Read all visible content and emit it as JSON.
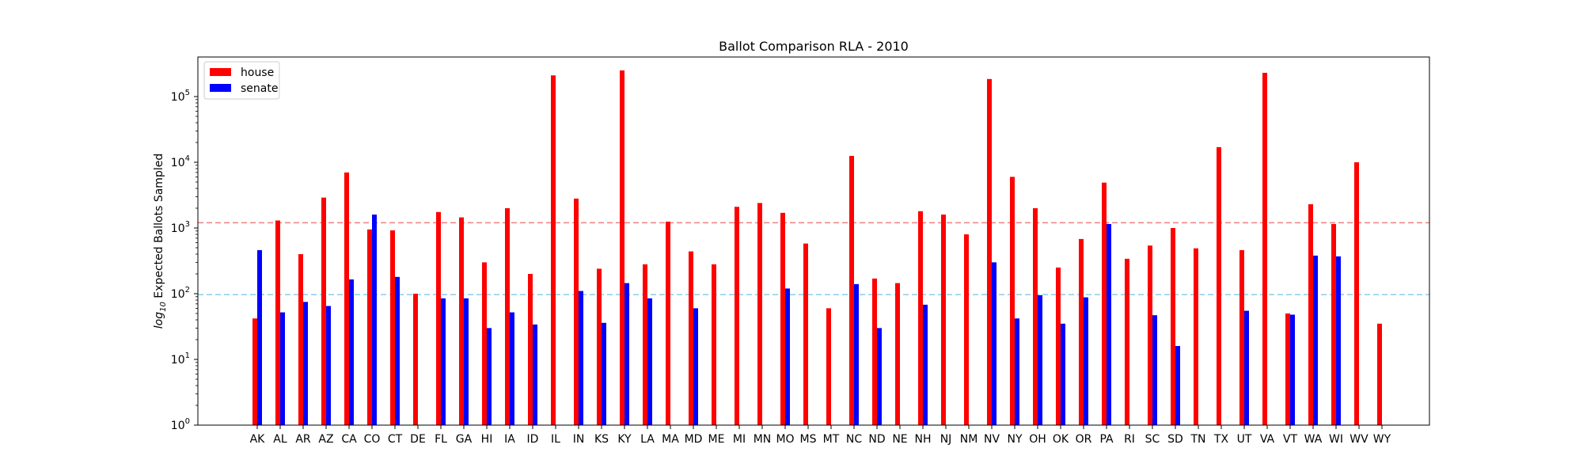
{
  "chart_data": {
    "type": "bar",
    "title": "Ballot Comparison RLA - 2010",
    "xlabel": "",
    "ylabel_prefix": "log",
    "ylabel_sub": "10",
    "ylabel_rest": " Expected Ballots Sampled",
    "yscale": "log",
    "ylim": [
      1,
      400000
    ],
    "yticks": [
      {
        "value": 1,
        "base": "10",
        "exp": "0"
      },
      {
        "value": 10,
        "base": "10",
        "exp": "1"
      },
      {
        "value": 100,
        "base": "10",
        "exp": "2"
      },
      {
        "value": 1000,
        "base": "10",
        "exp": "3"
      },
      {
        "value": 10000,
        "base": "10",
        "exp": "4"
      },
      {
        "value": 100000,
        "base": "10",
        "exp": "5"
      }
    ],
    "legend_position": "top-left",
    "categories": [
      "AK",
      "AL",
      "AR",
      "AZ",
      "CA",
      "CO",
      "CT",
      "DE",
      "FL",
      "GA",
      "HI",
      "IA",
      "ID",
      "IL",
      "IN",
      "KS",
      "KY",
      "LA",
      "MA",
      "MD",
      "ME",
      "MI",
      "MN",
      "MO",
      "MS",
      "MT",
      "NC",
      "ND",
      "NE",
      "NH",
      "NJ",
      "NM",
      "NV",
      "NY",
      "OH",
      "OK",
      "OR",
      "PA",
      "RI",
      "SC",
      "SD",
      "TN",
      "TX",
      "UT",
      "VA",
      "VT",
      "WA",
      "WI",
      "WV",
      "WY"
    ],
    "series": [
      {
        "name": "house",
        "color": "#ff0000",
        "values": [
          42,
          1300,
          400,
          2900,
          7000,
          950,
          920,
          100,
          1750,
          1450,
          300,
          2000,
          200,
          210000,
          2800,
          240,
          250000,
          280,
          1250,
          440,
          280,
          2100,
          2400,
          1700,
          580,
          60,
          12500,
          170,
          145,
          1800,
          1600,
          800,
          185000,
          6000,
          2000,
          250,
          680,
          4900,
          340,
          540,
          1000,
          490,
          17000,
          460,
          230000,
          50,
          2300,
          1150,
          10000,
          35
        ]
      },
      {
        "name": "senate",
        "color": "#0000ff",
        "values": [
          460,
          52,
          75,
          65,
          165,
          1600,
          180,
          null,
          85,
          85,
          30,
          52,
          34,
          null,
          110,
          36,
          145,
          85,
          null,
          60,
          null,
          null,
          null,
          120,
          null,
          null,
          140,
          30,
          null,
          68,
          null,
          null,
          300,
          42,
          95,
          35,
          88,
          1150,
          null,
          47,
          16,
          null,
          null,
          55,
          null,
          48,
          380,
          370,
          null,
          null
        ]
      }
    ],
    "hlines": [
      {
        "value": 1200,
        "color": "#f08080",
        "style": "dashed"
      },
      {
        "value": 97,
        "color": "#87ceeb",
        "style": "dashed"
      }
    ]
  }
}
